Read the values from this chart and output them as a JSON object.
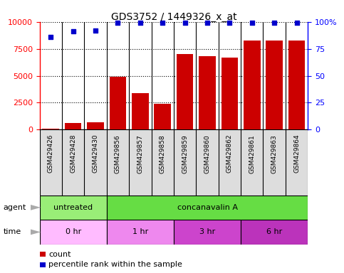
{
  "title": "GDS3752 / 1449326_x_at",
  "samples": [
    "GSM429426",
    "GSM429428",
    "GSM429430",
    "GSM429856",
    "GSM429857",
    "GSM429858",
    "GSM429859",
    "GSM429860",
    "GSM429862",
    "GSM429861",
    "GSM429863",
    "GSM429864"
  ],
  "counts": [
    120,
    600,
    700,
    4900,
    3400,
    2400,
    7000,
    6800,
    6700,
    8300,
    8300,
    8300
  ],
  "percentiles": [
    86,
    91,
    92,
    99,
    99,
    99,
    99,
    99,
    99,
    99,
    99,
    99
  ],
  "bar_color": "#cc0000",
  "dot_color": "#0000cc",
  "ylim_left": [
    0,
    10000
  ],
  "ylim_right": [
    0,
    100
  ],
  "yticks_left": [
    0,
    2500,
    5000,
    7500,
    10000
  ],
  "yticks_right": [
    0,
    25,
    50,
    75,
    100
  ],
  "agent_groups": [
    {
      "label": "untreated",
      "start": 0,
      "end": 3,
      "color": "#99ee77"
    },
    {
      "label": "concanavalin A",
      "start": 3,
      "end": 12,
      "color": "#66dd44"
    }
  ],
  "time_groups": [
    {
      "label": "0 hr",
      "start": 0,
      "end": 3,
      "color": "#ffbbff"
    },
    {
      "label": "1 hr",
      "start": 3,
      "end": 6,
      "color": "#ee88ee"
    },
    {
      "label": "3 hr",
      "start": 6,
      "end": 9,
      "color": "#cc44cc"
    },
    {
      "label": "6 hr",
      "start": 9,
      "end": 12,
      "color": "#bb33bb"
    }
  ],
  "background_color": "#ffffff",
  "label_bg_color": "#dddddd",
  "separator_color": "#888888"
}
